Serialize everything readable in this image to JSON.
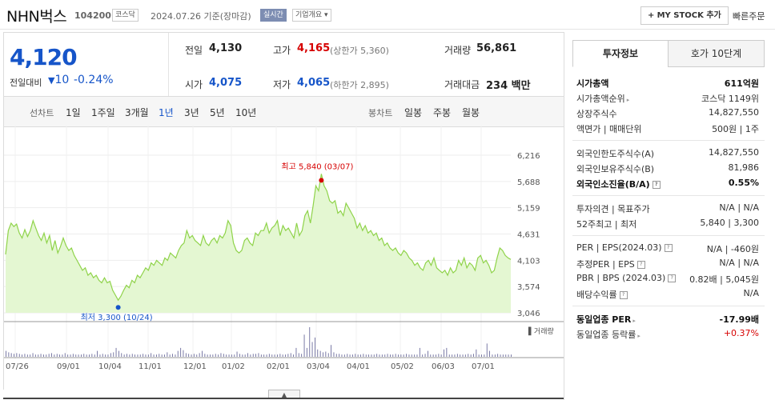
{
  "header": {
    "name": "NHN벅스",
    "code": "104200",
    "market": "코스닥",
    "date": "2024.07.26",
    "basis": "기준(장마감)",
    "live": "실시간",
    "overview": "기업개요",
    "mystock": "MY STOCK 추가",
    "quick_order": "빠른주문"
  },
  "price": {
    "current": "4,120",
    "change_label": "전일대비",
    "change_value": "10",
    "change_pct": "-0.24%"
  },
  "stats": {
    "prev_label": "전일",
    "prev": "4,130",
    "high_label": "고가",
    "high": "4,165",
    "upper_limit": "(상한가 5,360)",
    "volume_label": "거래량",
    "volume": "56,861",
    "open_label": "시가",
    "open": "4,075",
    "low_label": "저가",
    "low": "4,065",
    "lower_limit": "(하한가 2,895)",
    "amount_label": "거래대금",
    "amount": "234 백만"
  },
  "tabs": {
    "line_label": "선차트",
    "line_items": [
      "1일",
      "1주일",
      "3개월",
      "1년",
      "3년",
      "5년",
      "10년"
    ],
    "active": "1년",
    "candle_label": "봉차트",
    "candle_items": [
      "일봉",
      "주봉",
      "월봉"
    ]
  },
  "chart_data": {
    "type": "area",
    "ylim": [
      3046,
      6216
    ],
    "y_ticks": [
      "6,216",
      "5,688",
      "5,159",
      "4,631",
      "4,103",
      "3,574",
      "3,046"
    ],
    "x_ticks": [
      "07/26",
      "09/01",
      "10/04",
      "11/01",
      "12/01",
      "01/02",
      "02/01",
      "03/04",
      "04/01",
      "05/02",
      "06/03",
      "07/01"
    ],
    "max_label": "최고 5,840 (03/07)",
    "min_label": "최저 3,300 (10/24)",
    "volume_label": "거래량",
    "colors": {
      "line": "#8fd34a",
      "fill": "#e4f7d2",
      "volume": "#6b6b9c",
      "max": "#d60000",
      "min": "#1655c9"
    },
    "series": [
      {
        "values": [
          4220,
          4700,
          4850,
          4780,
          4830,
          4650,
          4550,
          4720,
          4580,
          4700,
          4900,
          4750,
          4600,
          4500,
          4650,
          4450,
          4600,
          4300,
          4500,
          4250,
          4380,
          4550,
          4400,
          4300,
          4350,
          4200,
          4100,
          4000,
          3900,
          3950,
          3800,
          3850,
          3750,
          3800,
          3700,
          3650,
          3750,
          3650,
          3680,
          3500,
          3400,
          3300,
          3380,
          3500,
          3600,
          3550,
          3700,
          3650,
          3800,
          3750,
          3850,
          3950,
          3900,
          4050,
          4000,
          4100,
          4050,
          4000,
          4150,
          4100,
          4250,
          4200,
          4150,
          4300,
          4400,
          4450,
          4700,
          4550,
          4600,
          4500,
          4450,
          4400,
          4600,
          4450,
          4400,
          4500,
          4550,
          4450,
          4600,
          4550,
          4650,
          4900,
          4800,
          4450,
          4300,
          4250,
          4300,
          4500,
          4550,
          4450,
          4400,
          4650,
          4600,
          4700,
          4700,
          4850,
          4650,
          4750,
          4800,
          4900,
          4600,
          4800,
          4700,
          4750,
          4650,
          4550,
          4850,
          4600,
          4700,
          5000,
          5100,
          4850,
          5200,
          5600,
          5500,
          5840,
          5600,
          5500,
          5300,
          5250,
          5300,
          5050,
          5100,
          5000,
          5250,
          5150,
          5050,
          4950,
          4750,
          4850,
          4700,
          4800,
          4650,
          4700,
          4600,
          4650,
          4500,
          4550,
          4400,
          4450,
          4350,
          4300,
          4350,
          4250,
          4200,
          4300,
          4250,
          4150,
          4100,
          4000,
          4050,
          3950,
          3900,
          4050,
          4100,
          4000,
          4150,
          3950,
          3900,
          3850,
          3900,
          3800,
          3950,
          3850,
          3900,
          4100,
          4000,
          4150,
          3950,
          4050,
          4000,
          3900,
          4150,
          4200,
          4050,
          4100,
          4000,
          3850,
          3900,
          4150,
          4350,
          4300,
          4200,
          4150,
          4120
        ]
      }
    ],
    "volume": [
      8,
      6,
      5,
      4,
      5,
      4,
      3,
      4,
      3,
      3,
      5,
      3,
      3,
      4,
      3,
      3,
      4,
      5,
      3,
      4,
      3,
      3,
      5,
      3,
      3,
      4,
      3,
      3,
      3,
      4,
      3,
      3,
      4,
      3,
      8,
      3,
      4,
      3,
      3,
      5,
      6,
      12,
      8,
      5,
      3,
      4,
      3,
      4,
      3,
      3,
      3,
      4,
      3,
      3,
      5,
      3,
      3,
      4,
      3,
      3,
      6,
      3,
      4,
      3,
      8,
      12,
      9,
      5,
      4,
      3,
      4,
      3,
      5,
      8,
      4,
      3,
      3,
      3,
      4,
      3,
      5,
      4,
      3,
      3,
      3,
      3,
      7,
      4,
      3,
      3,
      5,
      3,
      4,
      4,
      5,
      3,
      3,
      3,
      4,
      3,
      3,
      3,
      4,
      3,
      3,
      4,
      5,
      3,
      12,
      5,
      4,
      30,
      12,
      40,
      20,
      26,
      10,
      8,
      6,
      7,
      5,
      16,
      6,
      4,
      4,
      3,
      3,
      4,
      3,
      3,
      4,
      3,
      3,
      4,
      3,
      3,
      3,
      3,
      4,
      3,
      3,
      3,
      4,
      3,
      3,
      4,
      3,
      3,
      3,
      4,
      3,
      3,
      3,
      3,
      12,
      3,
      4,
      8,
      3,
      3,
      3,
      4,
      3,
      10,
      12,
      3,
      3,
      3,
      4,
      3,
      3,
      3,
      4,
      3,
      4,
      10,
      3,
      3,
      3,
      18,
      8,
      3,
      3,
      4,
      3,
      3,
      3,
      3,
      3
    ]
  },
  "info": {
    "tab_active": "투자정보",
    "tab_other": "호가 10단계",
    "rows": [
      {
        "k": "시가총액",
        "v": "611억원",
        "bold": true
      },
      {
        "k": "시가총액순위",
        "v": "코스닥 1149위",
        "arrow": true
      },
      {
        "k": "상장주식수",
        "v": "14,827,550"
      },
      {
        "k": "액면가 | 매매단위",
        "v": "500원 | 1주"
      }
    ],
    "rows2": [
      {
        "k": "외국인한도주식수(A)",
        "v": "14,827,550"
      },
      {
        "k": "외국인보유주식수(B)",
        "v": "81,986"
      },
      {
        "k": "외국인소진율(B/A)",
        "v": "0.55%",
        "bold": true,
        "q": true
      }
    ],
    "rows3": [
      {
        "k": "투자의견 | 목표주가",
        "v": "N/A | N/A"
      },
      {
        "k": "52주최고 | 최저",
        "v": "5,840 | 3,300"
      }
    ],
    "rows4": [
      {
        "k": "PER | EPS(2024.03)",
        "v": "N/A | -460원",
        "q": true
      },
      {
        "k": "추정PER | EPS",
        "v": "N/A | N/A",
        "q": true
      },
      {
        "k": "PBR | BPS (2024.03)",
        "v": "0.82배 | 5,045원",
        "q": true
      },
      {
        "k": "배당수익률",
        "v": "N/A",
        "q": true
      }
    ],
    "rows5": [
      {
        "k": "동일업종 PER",
        "v": "-17.99배",
        "bold": true,
        "arrow": true
      },
      {
        "k": "동일업종 등락률",
        "v": "+0.37%",
        "arrow": true,
        "red": true
      }
    ]
  }
}
